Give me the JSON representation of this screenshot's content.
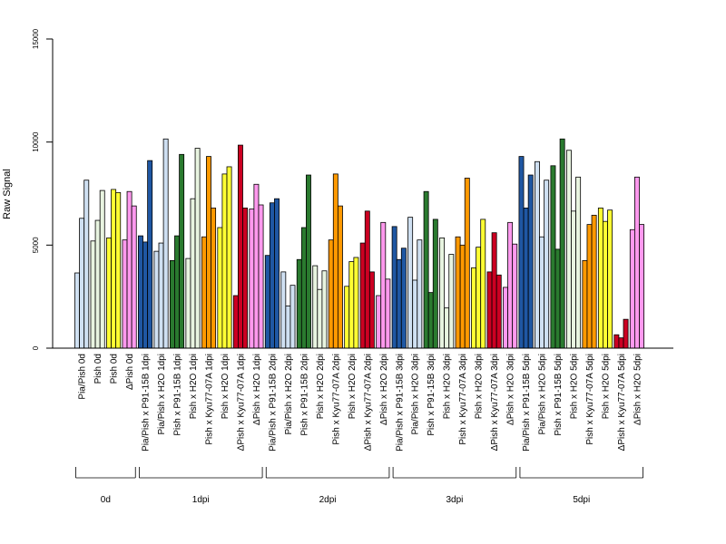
{
  "chart_data": {
    "type": "bar",
    "ylabel": "Raw Signal",
    "ylim": [
      0,
      15000
    ],
    "yticks": [
      "0",
      "5000",
      "10000",
      "15000"
    ],
    "colors": {
      "light_blue": "#cfe0f2",
      "dark_blue": "#1f57a3",
      "light_green": "#e8f4e0",
      "dark_green": "#2a7a2f",
      "yellow": "#ffff33",
      "orange": "#ff9900",
      "red": "#cc0022",
      "pink": "#ff99ee"
    },
    "categories": [
      {
        "label": "Pia/Pish 0d",
        "color": "light_blue",
        "values": [
          3650,
          6300,
          8150
        ]
      },
      {
        "label": "Pish 0d",
        "color": "light_green",
        "values": [
          5200,
          6200,
          7650
        ]
      },
      {
        "label": "Pish 0d",
        "color": "yellow",
        "values": [
          5350,
          7700,
          7550
        ]
      },
      {
        "label": "ΔPish 0d",
        "color": "pink",
        "values": [
          5250,
          7600,
          6900
        ]
      },
      {
        "label": "Pia/Pish x P91-15B 1dpi",
        "color": "dark_blue",
        "values": [
          5450,
          5150,
          9100
        ]
      },
      {
        "label": "Pia/Pish x H2O 1dpi",
        "color": "light_blue",
        "values": [
          4700,
          5100,
          10150
        ]
      },
      {
        "label": "Pish x P91-15B 1dpi",
        "color": "dark_green",
        "values": [
          4250,
          5450,
          9400
        ]
      },
      {
        "label": "Pish x H2O 1dpi",
        "color": "light_green",
        "values": [
          4350,
          7250,
          9700
        ]
      },
      {
        "label": "Pish x Kyu77-07A 1dpi",
        "color": "orange",
        "values": [
          5400,
          9300,
          6800
        ]
      },
      {
        "label": "Pish x H2O 1dpi",
        "color": "yellow",
        "values": [
          5850,
          8450,
          8800
        ]
      },
      {
        "label": "ΔPish x Kyu77-07A 1dpi",
        "color": "red",
        "values": [
          2550,
          9850,
          6800
        ]
      },
      {
        "label": "ΔPish x H2O 1dpi",
        "color": "pink",
        "values": [
          6750,
          7950,
          6950
        ]
      },
      {
        "label": "Pia/Pish x P91-15B 2dpi",
        "color": "dark_blue",
        "values": [
          4500,
          7050,
          7250
        ]
      },
      {
        "label": "Pia/Pish x H2O 2dpi",
        "color": "light_blue",
        "values": [
          3700,
          2050,
          3050
        ]
      },
      {
        "label": "Pish x P91-15B 2dpi",
        "color": "dark_green",
        "values": [
          4300,
          5850,
          8400
        ]
      },
      {
        "label": "Pish x H2O 2dpi",
        "color": "light_green",
        "values": [
          4000,
          2850,
          3750
        ]
      },
      {
        "label": "Pish x Kyu77-07A 2dpi",
        "color": "orange",
        "values": [
          5250,
          8450,
          6900
        ]
      },
      {
        "label": "Pish x H2O 2dpi",
        "color": "yellow",
        "values": [
          3000,
          4200,
          4400
        ]
      },
      {
        "label": "ΔPish x Kyu77-07A 2dpi",
        "color": "red",
        "values": [
          5100,
          6650,
          3700
        ]
      },
      {
        "label": "ΔPish x H2O 2dpi",
        "color": "pink",
        "values": [
          2550,
          6100,
          3350
        ]
      },
      {
        "label": "Pia/Pish x P91-15B 3dpi",
        "color": "dark_blue",
        "values": [
          5900,
          4300,
          4850
        ]
      },
      {
        "label": "Pia/Pish x H2O 3dpi",
        "color": "light_blue",
        "values": [
          6350,
          3300,
          5250
        ]
      },
      {
        "label": "Pish x P91-15B 3dpi",
        "color": "dark_green",
        "values": [
          7600,
          2700,
          6250
        ]
      },
      {
        "label": "Pish x H2O 3dpi",
        "color": "light_green",
        "values": [
          5350,
          1950,
          4550
        ]
      },
      {
        "label": "Pish x Kyu77-07A 3dpi",
        "color": "orange",
        "values": [
          5400,
          5000,
          8250
        ]
      },
      {
        "label": "Pish x H2O 3dpi",
        "color": "yellow",
        "values": [
          3900,
          4900,
          6250
        ]
      },
      {
        "label": "ΔPish x Kyu77-07A 3dpi",
        "color": "red",
        "values": [
          3700,
          5600,
          3550
        ]
      },
      {
        "label": "ΔPish x H2O 3dpi",
        "color": "pink",
        "values": [
          2950,
          6100,
          5050
        ]
      },
      {
        "label": "Pia/Pish x P91-15B 5dpi",
        "color": "dark_blue",
        "values": [
          9300,
          6800,
          8400
        ]
      },
      {
        "label": "Pia/Pish x H2O 5dpi",
        "color": "light_blue",
        "values": [
          9050,
          5400,
          8150
        ]
      },
      {
        "label": "Pish x P91-15B 5dpi",
        "color": "dark_green",
        "values": [
          8850,
          4800,
          10150
        ]
      },
      {
        "label": "Pish x H2O 5dpi",
        "color": "light_green",
        "values": [
          9600,
          6650,
          8300
        ]
      },
      {
        "label": "Pish x Kyu77-07A 5dpi",
        "color": "orange",
        "values": [
          4250,
          6000,
          6450
        ]
      },
      {
        "label": "Pish x H2O 5dpi",
        "color": "yellow",
        "values": [
          6800,
          6150,
          6700
        ]
      },
      {
        "label": "ΔPish x Kyu77-07A 5dpi",
        "color": "red",
        "values": [
          650,
          500,
          1400
        ]
      },
      {
        "label": "ΔPish x H2O 5dpi",
        "color": "pink",
        "values": [
          5750,
          8300,
          6000
        ]
      }
    ],
    "groups": [
      {
        "label": "0d",
        "from": 0,
        "to": 3
      },
      {
        "label": "1dpi",
        "from": 4,
        "to": 11
      },
      {
        "label": "2dpi",
        "from": 12,
        "to": 19
      },
      {
        "label": "3dpi",
        "from": 20,
        "to": 27
      },
      {
        "label": "5dpi",
        "from": 28,
        "to": 35
      }
    ]
  }
}
